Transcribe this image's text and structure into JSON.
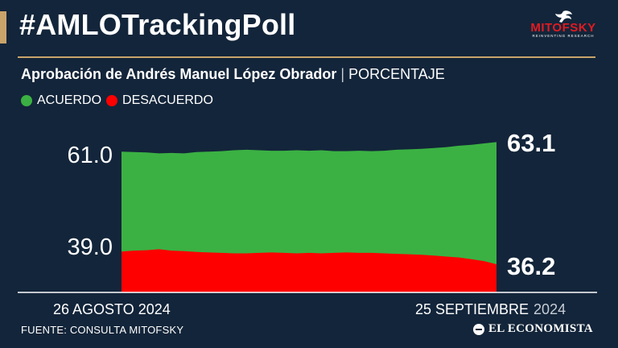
{
  "header": {
    "hashtag": "#AMLOTrackingPoll",
    "logo_name": "MITOFSKY",
    "logo_tagline": "REINVENTING RESEARCH"
  },
  "subtitle": {
    "title": "Aprobación de Andrés Manuel López Obrador",
    "separator": "|",
    "unit": "PORCENTAJE"
  },
  "legend": [
    {
      "label": "ACUERDO",
      "color": "#3bb143"
    },
    {
      "label": "DESACUERDO",
      "color": "#ff0000"
    }
  ],
  "chart_data": {
    "type": "area",
    "x_start_label": "26 AGOSTO 2024",
    "x_end_label_main": "25 SEPTIEMBRE",
    "x_end_label_year": "2024",
    "ylim": [
      30,
      66
    ],
    "series": [
      {
        "name": "ACUERDO",
        "color": "#3bb143",
        "start_label": "61.0",
        "end_label": "63.1",
        "values": [
          61.0,
          60.9,
          60.8,
          60.6,
          60.7,
          60.6,
          60.9,
          61.0,
          61.1,
          61.3,
          61.4,
          61.3,
          61.2,
          61.2,
          61.3,
          61.2,
          61.3,
          61.1,
          61.1,
          61.2,
          61.1,
          61.2,
          61.4,
          61.5,
          61.6,
          61.8,
          62.0,
          62.3,
          62.5,
          62.8,
          63.1
        ]
      },
      {
        "name": "DESACUERDO",
        "color": "#ff0000",
        "start_label": "39.0",
        "end_label": "36.2",
        "values": [
          39.0,
          39.2,
          39.3,
          39.5,
          39.2,
          39.1,
          38.9,
          38.8,
          38.7,
          38.6,
          38.6,
          38.7,
          38.8,
          38.7,
          38.6,
          38.7,
          38.6,
          38.7,
          38.8,
          38.7,
          38.7,
          38.6,
          38.5,
          38.4,
          38.3,
          38.1,
          37.9,
          37.7,
          37.3,
          36.9,
          36.2
        ]
      }
    ]
  },
  "footer": {
    "source": "FUENTE: CONSULTA MITOFSKY",
    "publisher": "EL ECONOMISTA"
  }
}
